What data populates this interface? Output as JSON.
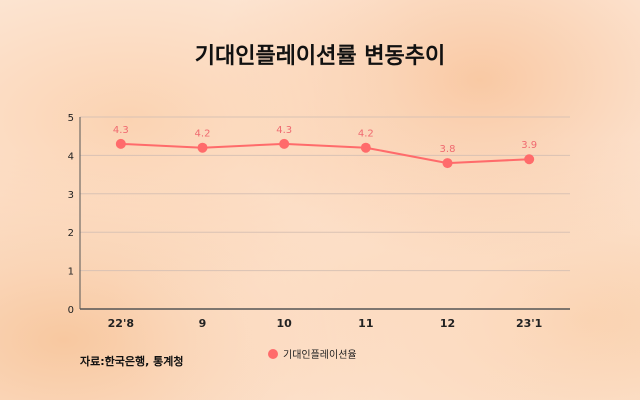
{
  "chart_data": {
    "type": "line",
    "title": "기대인플레이션률 변동추이",
    "categories": [
      "22'8",
      "9",
      "10",
      "11",
      "12",
      "23'1"
    ],
    "series": [
      {
        "name": "기대인플레이션율",
        "values": [
          4.3,
          4.2,
          4.3,
          4.2,
          3.8,
          3.9
        ]
      }
    ],
    "data_labels": [
      "4.3",
      "4.2",
      "4.3",
      "4.2",
      "3.8",
      "3.9"
    ],
    "y_ticks": [
      "0",
      "1",
      "2",
      "3",
      "4",
      "5"
    ],
    "ylim": [
      0,
      5
    ],
    "grid": true,
    "legend_position": "bottom-center",
    "line_color": "#ff6b6b",
    "source": "자료:한국은행, 통계청"
  }
}
